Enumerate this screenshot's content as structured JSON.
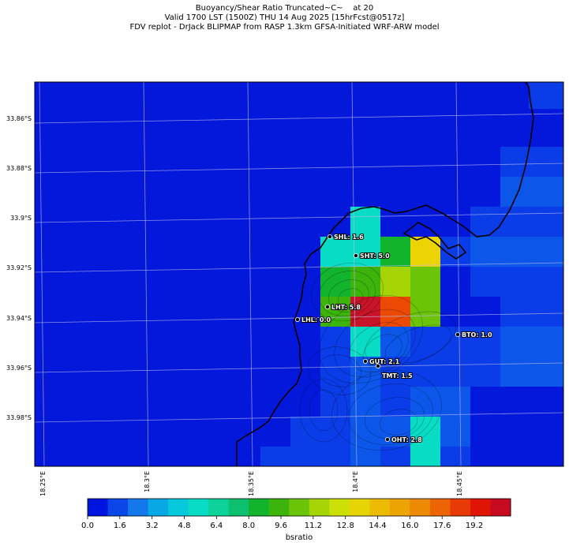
{
  "title": {
    "line1": "Buoyancy/Shear Ratio Truncated~C~    at 20",
    "line2": "Valid 1700 LST (1500Z) THU 14 Aug 2025 [15hrFcst@0517z]",
    "line3": "FDV replot - DrJack BLIPMAP from RASP 1.3km GFSA-Initiated WRF-ARW model"
  },
  "lat_ticks": [
    "33.86°S",
    "33.88°S",
    "33.9°S",
    "33.92°S",
    "33.94°S",
    "33.96°S",
    "33.98°S"
  ],
  "lon_ticks": [
    "18.25°E",
    "18.3°E",
    "18.35°E",
    "18.4°E",
    "18.45°E"
  ],
  "stations": [
    {
      "label": "SHL: 1.6"
    },
    {
      "label": "SHT: 5.0"
    },
    {
      "label": "LHT: 5.8"
    },
    {
      "label": "LHL: 0.0"
    },
    {
      "label": "BTO: 1.0"
    },
    {
      "label": "GUT: 2.1"
    },
    {
      "label": "TMT: 1.5"
    },
    {
      "label": "OHT: 2.8"
    }
  ],
  "colorbar": {
    "label": "bsratio",
    "ticks": [
      "0.0",
      "1.6",
      "3.2",
      "4.8",
      "6.4",
      "8.0",
      "9.6",
      "11.2",
      "12.8",
      "14.4",
      "16.0",
      "17.6",
      "19.2"
    ],
    "colors": [
      "#0014e0",
      "#0a46e8",
      "#1478ea",
      "#08a8e4",
      "#06c8dc",
      "#08dcc4",
      "#0cd29a",
      "#0cc070",
      "#12b42e",
      "#3cb40c",
      "#6cc408",
      "#a4d404",
      "#cce008",
      "#e6d404",
      "#ecbc04",
      "#eca404",
      "#ec8a04",
      "#ec6404",
      "#e83a04",
      "#e01404",
      "#c80a20"
    ]
  },
  "field_colors": {
    "base": "#0418dc",
    "c1": "#0a3ce8",
    "c2": "#0c56ea",
    "cyan": "#08dcc4",
    "teal": "#06c8a4",
    "green": "#12b42e",
    "green2": "#3cb40c",
    "lime": "#6cc408",
    "yellowgreen": "#a4d404",
    "yellow": "#ecd404",
    "orange": "#ec4a04",
    "red": "#c81428"
  }
}
